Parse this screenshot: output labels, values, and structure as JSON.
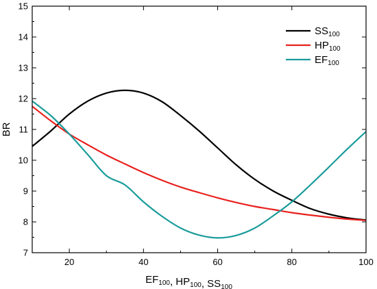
{
  "chart_data": {
    "type": "line",
    "title": "",
    "xlabel": {
      "parts": [
        {
          "base": "EF",
          "sub": "100"
        },
        {
          "base": ", HP",
          "sub": "100"
        },
        {
          "base": ", SS",
          "sub": "100"
        }
      ]
    },
    "ylabel": "BR",
    "xlim": [
      10,
      100
    ],
    "ylim": [
      7,
      15
    ],
    "xticks": [
      20,
      40,
      60,
      80,
      100
    ],
    "yticks": [
      7,
      8,
      9,
      10,
      11,
      12,
      13,
      14,
      15
    ],
    "xtick_labels": [
      "20",
      "40",
      "60",
      "80",
      "100"
    ],
    "ytick_labels": [
      "7",
      "8",
      "9",
      "10",
      "11",
      "12",
      "13",
      "14",
      "15"
    ],
    "grid": false,
    "legend_position": "top-right",
    "x": [
      10,
      15,
      20,
      25,
      30,
      35,
      40,
      45,
      50,
      55,
      60,
      65,
      70,
      75,
      80,
      85,
      90,
      95,
      100
    ],
    "series": [
      {
        "key": "ss",
        "name": {
          "base": "SS",
          "sub": "100"
        },
        "color": "#000000",
        "values": [
          10.45,
          10.95,
          11.5,
          11.92,
          12.18,
          12.27,
          12.18,
          11.9,
          11.45,
          10.95,
          10.4,
          9.85,
          9.38,
          9.0,
          8.7,
          8.43,
          8.25,
          8.13,
          8.06
        ]
      },
      {
        "key": "hp",
        "name": {
          "base": "HP",
          "sub": "100"
        },
        "color": "#e8201c",
        "values": [
          11.75,
          11.28,
          10.85,
          10.5,
          10.17,
          9.88,
          9.6,
          9.35,
          9.13,
          8.95,
          8.78,
          8.63,
          8.5,
          8.4,
          8.3,
          8.22,
          8.15,
          8.09,
          8.05
        ]
      },
      {
        "key": "ef",
        "name": {
          "base": "EF",
          "sub": "100"
        },
        "color": "#1a9b9b",
        "values": [
          11.92,
          11.45,
          10.85,
          10.18,
          9.5,
          9.2,
          8.65,
          8.18,
          7.8,
          7.57,
          7.48,
          7.56,
          7.8,
          8.2,
          8.65,
          9.2,
          9.78,
          10.37,
          10.93
        ]
      }
    ]
  }
}
